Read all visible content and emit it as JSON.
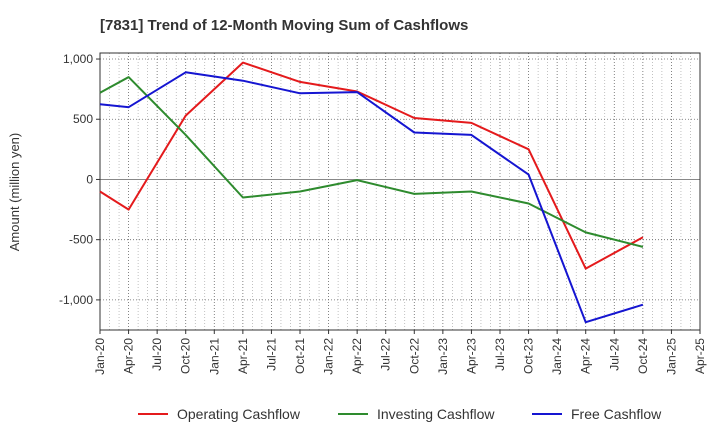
{
  "chart_data": {
    "type": "line",
    "title": "[7831]  Trend of 12-Month Moving Sum of Cashflows",
    "xlabel": "",
    "ylabel": "Amount (million yen)",
    "ylim": [
      -1250,
      1050
    ],
    "yticks": [
      1000,
      500,
      0,
      -500,
      -1000
    ],
    "ytick_labels": [
      "1,000",
      "500",
      "0",
      "-500",
      "-1,000"
    ],
    "x_categories": [
      "Jan-20",
      "Apr-20",
      "Jul-20",
      "Oct-20",
      "Jan-21",
      "Apr-21",
      "Jul-21",
      "Oct-21",
      "Jan-22",
      "Apr-22",
      "Jul-22",
      "Oct-22",
      "Jan-23",
      "Apr-23",
      "Jul-23",
      "Oct-23",
      "Jan-24",
      "Apr-24",
      "Jul-24",
      "Oct-24",
      "Jan-25",
      "Apr-25"
    ],
    "grid": true,
    "legend_position": "bottom",
    "series": [
      {
        "name": "Operating Cashflow",
        "color": "#e41a1c",
        "x": [
          "Jan-20",
          "Apr-20",
          "Oct-20",
          "Apr-21",
          "Oct-21",
          "Apr-22",
          "Oct-22",
          "Apr-23",
          "Oct-23",
          "Apr-24",
          "Oct-24"
        ],
        "values": [
          -100,
          -250,
          530,
          970,
          810,
          730,
          510,
          470,
          250,
          -740,
          -480
        ]
      },
      {
        "name": "Investing Cashflow",
        "color": "#2e8b2e",
        "x": [
          "Jan-20",
          "Apr-20",
          "Oct-20",
          "Apr-21",
          "Oct-21",
          "Apr-22",
          "Oct-22",
          "Apr-23",
          "Oct-23",
          "Apr-24",
          "Oct-24"
        ],
        "values": [
          720,
          850,
          370,
          -150,
          -100,
          -5,
          -120,
          -100,
          -200,
          -440,
          -560
        ]
      },
      {
        "name": "Free Cashflow",
        "color": "#1515d1",
        "x": [
          "Jan-20",
          "Apr-20",
          "Oct-20",
          "Apr-21",
          "Oct-21",
          "Apr-22",
          "Oct-22",
          "Apr-23",
          "Oct-23",
          "Apr-24",
          "Oct-24"
        ],
        "values": [
          625,
          600,
          890,
          820,
          715,
          725,
          390,
          370,
          40,
          -1185,
          -1040
        ]
      }
    ]
  }
}
